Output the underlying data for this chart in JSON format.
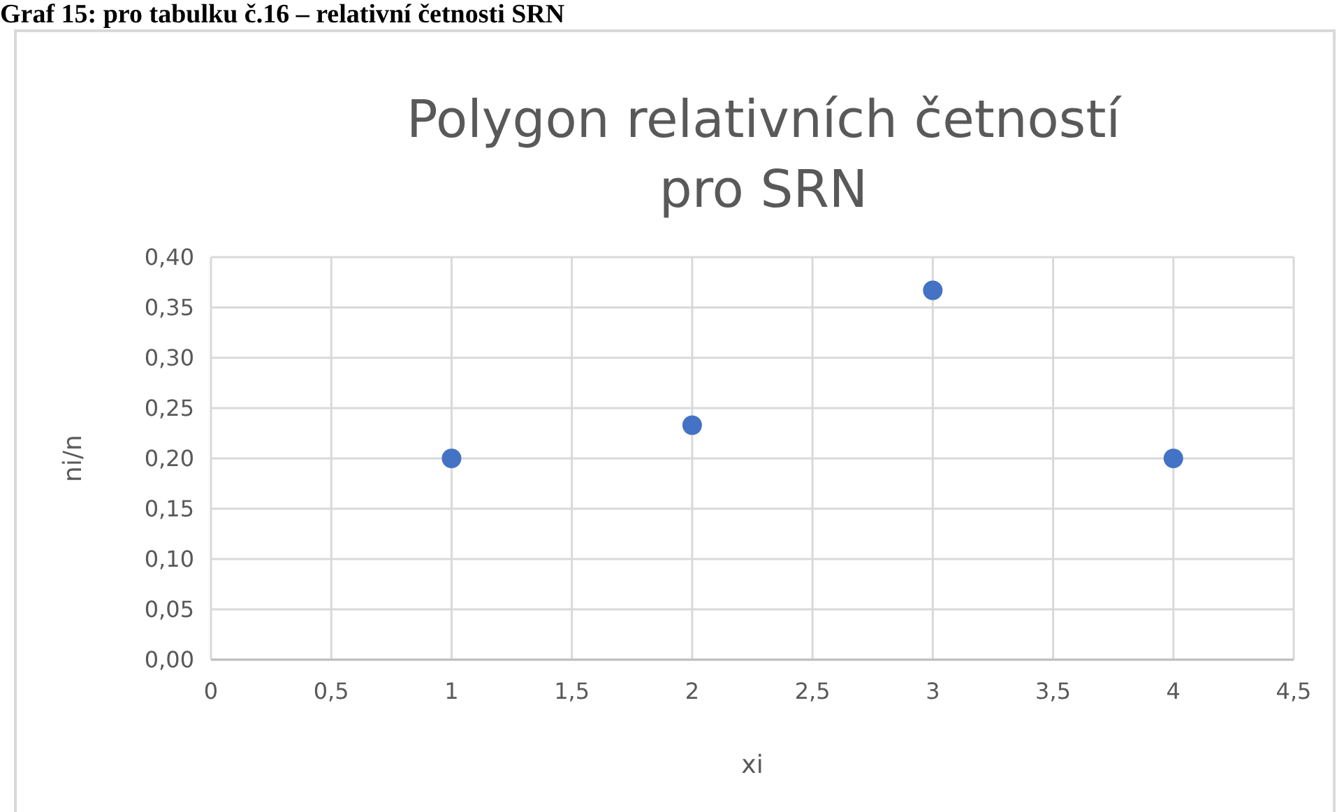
{
  "chart_data": {
    "type": "scatter",
    "title": "Polygon relativních četností\npro SRN",
    "xlabel": "xi",
    "ylabel": "ni/n",
    "annotations": [
      "Graf 15: pro tabulku č.16 – relativní četnosti SRN"
    ],
    "x": [
      1,
      2,
      3,
      4
    ],
    "series": [
      {
        "color": "#4472c4",
        "values": [
          0.2,
          0.233,
          0.367,
          0.2
        ]
      }
    ],
    "xlim": [
      0,
      4.5
    ],
    "xticks": [
      0,
      {
        "value": 0.5,
        "label": "0,5"
      },
      1,
      {
        "value": 1.5,
        "label": "1,5"
      },
      2,
      {
        "value": 2.5,
        "label": "2,5"
      },
      3,
      {
        "value": 3.5,
        "label": "3,5"
      },
      4,
      {
        "value": 4.5,
        "label": "4,5"
      }
    ],
    "ylim": [
      0,
      0.4
    ],
    "yticks": [
      {
        "value": 0,
        "label": "0,00"
      },
      {
        "value": 0.05,
        "label": "0,05"
      },
      {
        "value": 0.1,
        "label": "0,10"
      },
      {
        "value": 0.15,
        "label": "0,15"
      },
      {
        "value": 0.2,
        "label": "0,20"
      },
      {
        "value": 0.25,
        "label": "0,25"
      },
      {
        "value": 0.3,
        "label": "0,30"
      },
      {
        "value": 0.35,
        "label": "0,35"
      },
      {
        "value": 0.4,
        "label": "0,40"
      }
    ],
    "grid": true,
    "marker": "circle"
  }
}
